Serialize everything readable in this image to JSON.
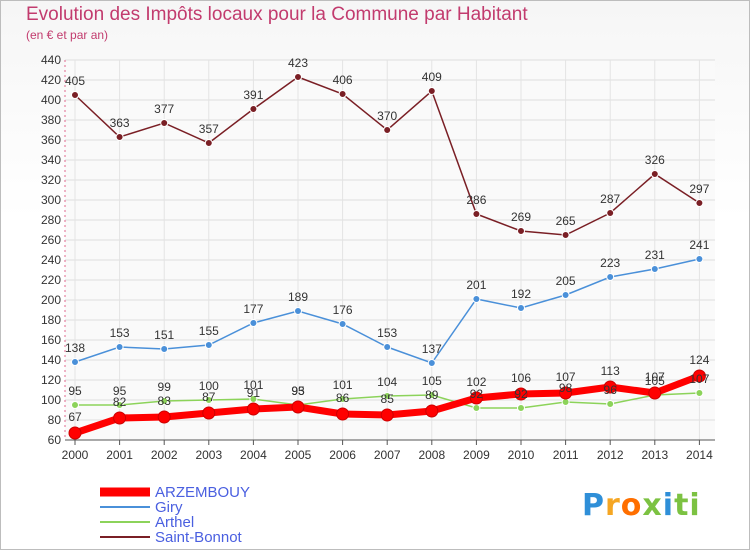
{
  "title": "Evolution des Impôts locaux pour la Commune par Habitant",
  "subtitle": "(en € et par an)",
  "logo": [
    "P",
    "r",
    "o",
    "x",
    "i",
    "ti"
  ],
  "chart_data": {
    "type": "line",
    "x": [
      2000,
      2001,
      2002,
      2003,
      2004,
      2005,
      2006,
      2007,
      2008,
      2009,
      2010,
      2011,
      2012,
      2013,
      2014
    ],
    "ylim": [
      60,
      440
    ],
    "y_ticks": [
      60,
      80,
      100,
      120,
      140,
      160,
      180,
      200,
      220,
      240,
      260,
      280,
      300,
      320,
      340,
      360,
      380,
      400,
      420,
      440
    ],
    "grid": true,
    "legend_position": "bottom-left",
    "series": [
      {
        "name": "ARZEMBOUY",
        "color": "#ff0000",
        "thick": true,
        "values": [
          67,
          82,
          83,
          87,
          91,
          93,
          86,
          85,
          89,
          102,
          106,
          107,
          113,
          107,
          124
        ]
      },
      {
        "name": "Giry",
        "color": "#4a90d9",
        "values": [
          138,
          153,
          151,
          155,
          177,
          189,
          176,
          153,
          137,
          201,
          192,
          205,
          223,
          231,
          241
        ]
      },
      {
        "name": "Arthel",
        "color": "#8cd35a",
        "values": [
          95,
          95,
          99,
          100,
          101,
          95,
          101,
          104,
          105,
          92,
          92,
          98,
          96,
          105,
          107
        ]
      },
      {
        "name": "Saint-Bonnot",
        "color": "#7a1f25",
        "values": [
          405,
          363,
          377,
          357,
          391,
          423,
          406,
          370,
          409,
          286,
          269,
          265,
          287,
          326,
          297
        ]
      }
    ]
  }
}
